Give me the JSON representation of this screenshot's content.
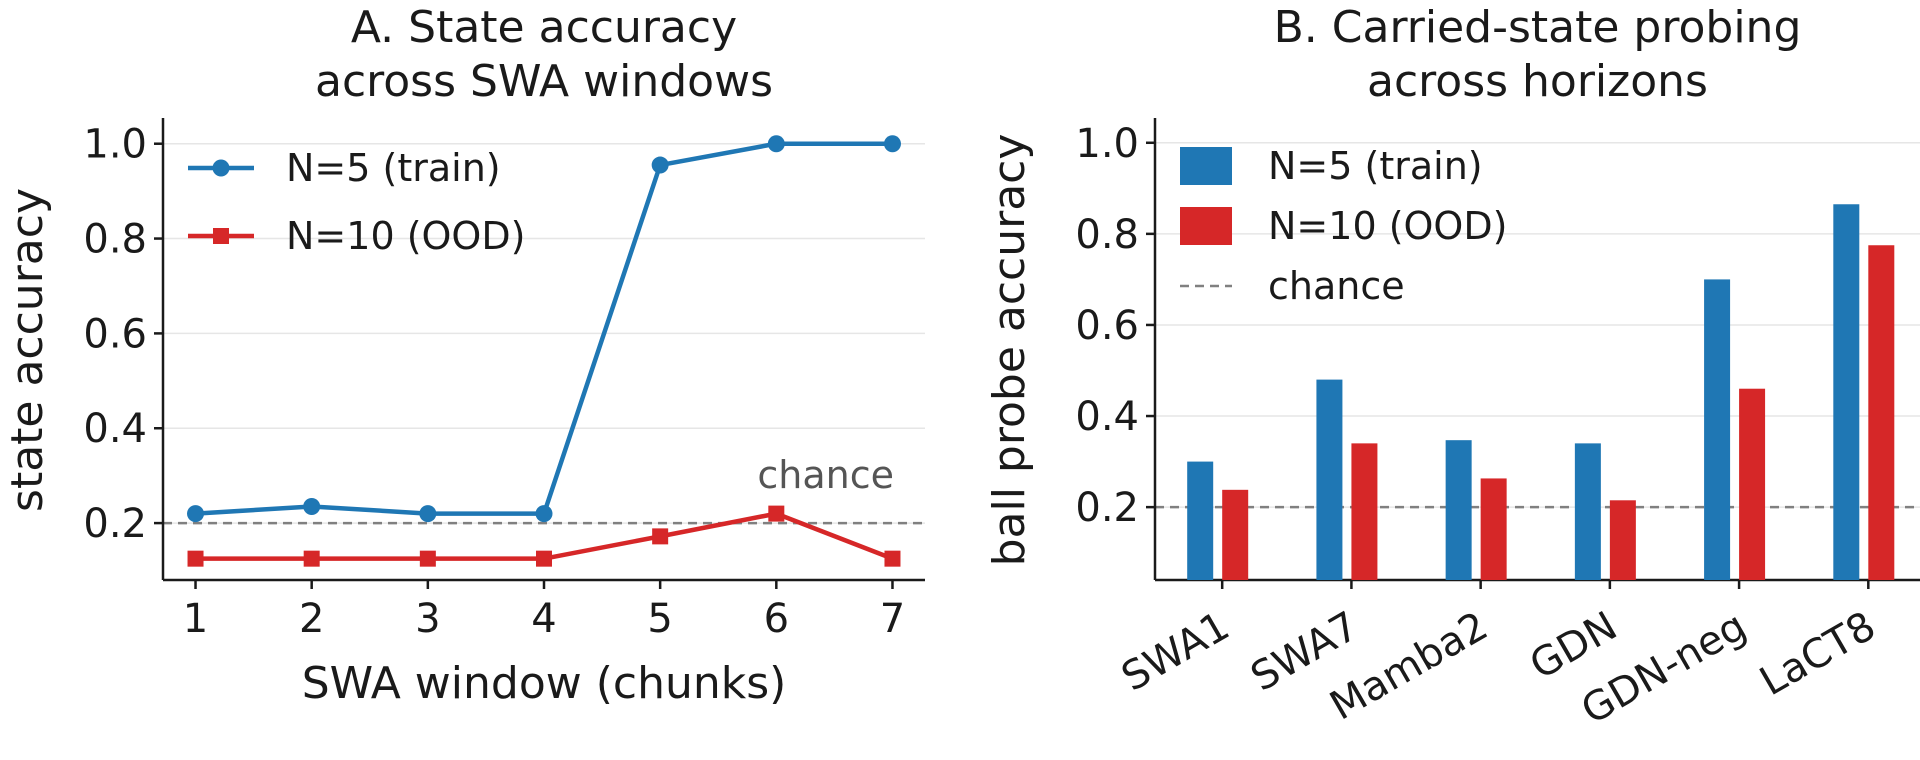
{
  "chart_data": [
    {
      "type": "line",
      "title_lines": [
        "A. State accuracy",
        "across SWA windows"
      ],
      "xlabel": "SWA window (chunks)",
      "ylabel": "state accuracy",
      "x": [
        1,
        2,
        3,
        4,
        5,
        6,
        7
      ],
      "xlim": [
        0.72,
        7.28
      ],
      "ylim": [
        0.08,
        1.05
      ],
      "yticks": [
        0.2,
        0.4,
        0.6,
        0.8,
        1.0
      ],
      "ytick_labels": [
        "0.2",
        "0.4",
        "0.6",
        "0.8",
        "1.0"
      ],
      "grid": "horizontal",
      "legend_position": "top-left",
      "series": [
        {
          "name": "N=5 (train)",
          "values": [
            0.22,
            0.235,
            0.22,
            0.22,
            0.955,
            1.0,
            1.0
          ],
          "color": "#1f77b4",
          "marker": "circle"
        },
        {
          "name": "N=10 (OOD)",
          "values": [
            0.125,
            0.125,
            0.125,
            0.125,
            0.172,
            0.22,
            0.125
          ],
          "color": "#d62728",
          "marker": "square"
        }
      ],
      "chance": {
        "value": 0.2,
        "label": "chance",
        "color": "#808080"
      }
    },
    {
      "type": "bar",
      "title_lines": [
        "B. Carried-state probing",
        "across horizons"
      ],
      "xlabel": "",
      "ylabel": "ball probe accuracy",
      "categories": [
        "SWA1",
        "SWA7",
        "Mamba2",
        "GDN",
        "GDN-neg",
        "LaCT8"
      ],
      "ylim": [
        0.04,
        1.05
      ],
      "yticks": [
        0.2,
        0.4,
        0.6,
        0.8,
        1.0
      ],
      "ytick_labels": [
        "0.2",
        "0.4",
        "0.6",
        "0.8",
        "1.0"
      ],
      "grid": "horizontal",
      "legend_position": "top-left",
      "series": [
        {
          "name": "N=5 (train)",
          "values": [
            0.3,
            0.48,
            0.347,
            0.34,
            0.7,
            0.865
          ],
          "color": "#1f77b4"
        },
        {
          "name": "N=10 (OOD)",
          "values": [
            0.238,
            0.34,
            0.263,
            0.215,
            0.46,
            0.775
          ],
          "color": "#d62728"
        }
      ],
      "chance": {
        "value": 0.2,
        "label": "chance",
        "color": "#808080"
      }
    }
  ]
}
